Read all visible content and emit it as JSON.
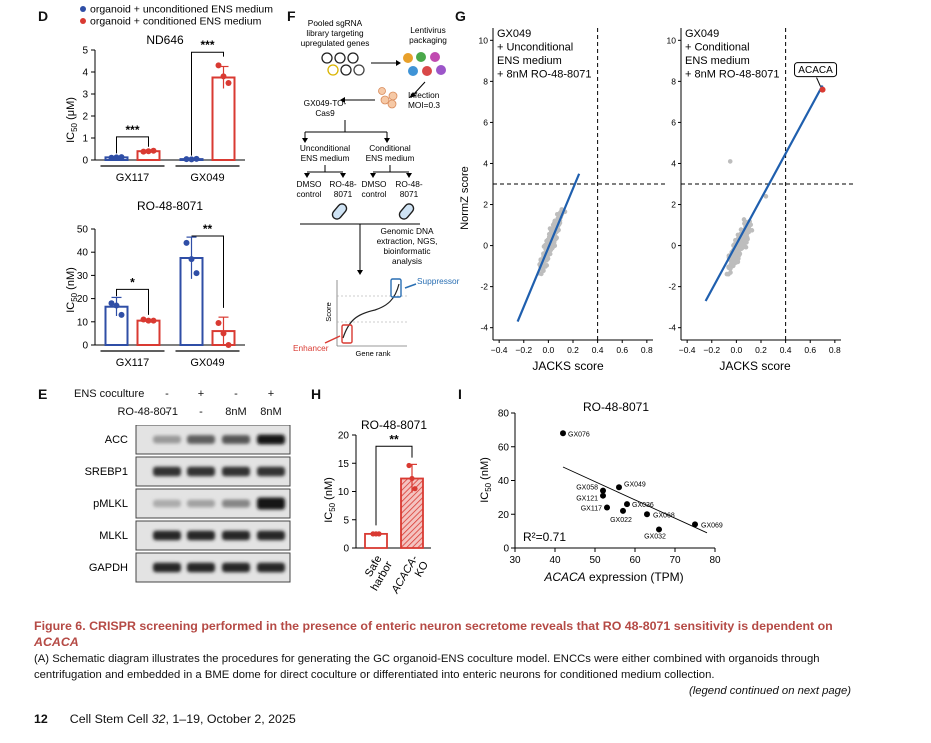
{
  "panel_D": {
    "letter": "D",
    "legend_uncond": "organoid + unconditioned ENS medium",
    "legend_cond": "organoid + conditioned ENS medium",
    "colors": {
      "blue": "#2f4ea6",
      "red": "#d93a32"
    },
    "top": {
      "title": "ND646",
      "ylabel_main": "IC",
      "ylabel_sub": "50",
      "ylabel_unit": " (μM)",
      "yticks": [
        "0",
        "1",
        "2",
        "3",
        "4",
        "5"
      ],
      "groups": [
        "GX117",
        "GX049"
      ],
      "sig": [
        "***",
        "***"
      ]
    },
    "bottom": {
      "title": "RO-48-8071",
      "ylabel_main": "IC",
      "ylabel_sub": "50",
      "ylabel_unit": " (nM)",
      "yticks": [
        "0",
        "10",
        "20",
        "30",
        "40",
        "50"
      ],
      "groups": [
        "GX117",
        "GX049"
      ],
      "sig": [
        "*",
        "**"
      ]
    }
  },
  "panel_F": {
    "letter": "F",
    "pool": "Pooled sgRNA library targeting upregulated genes",
    "lentivirus": "Lentivirus packaging",
    "infection": "Infection MOI=0.3",
    "cell": "GX049-TO-Cas9",
    "uncond": "Unconditional ENS medium",
    "cond": "Conditional ENS medium",
    "dmso": "DMSO control",
    "ro": "RO-48-8071",
    "genomic": "Genomic DNA extraction, NGS, bioinformatic analysis",
    "suppressor": "Suppressor",
    "enhancer": "Enhancer",
    "score": "Score",
    "gene_rank": "Gene rank"
  },
  "panel_G": {
    "letter": "G",
    "left_label": "GX049\n+ Unconditional\nENS medium\n+ 8nM RO-48-8071",
    "right_label": "GX049\n+ Conditional\nENS medium\n+ 8nM RO-48-8071",
    "ylabel": "NormZ score",
    "xlabel": "JACKS score",
    "highlight": "ACACA",
    "yticks": [
      "-4",
      "-2",
      "0",
      "2",
      "4",
      "6",
      "8",
      "10"
    ],
    "xticks": [
      "−0.4",
      "−0.2",
      "0.0",
      "0.2",
      "0.4",
      "0.6",
      "0.8"
    ]
  },
  "panel_E": {
    "letter": "E",
    "row1_label": "ENS coculture",
    "row1_vals": [
      "-",
      "+",
      "-",
      "+"
    ],
    "row2_label": "RO-48-8071",
    "row2_vals": [
      "-",
      "-",
      "8nM",
      "8nM"
    ],
    "blots": [
      "ACC",
      "SREBP1",
      "pMLKL",
      "MLKL",
      "GAPDH"
    ]
  },
  "panel_H": {
    "letter": "H",
    "title": "RO-48-8071",
    "ylabel_main": "IC",
    "ylabel_sub": "50",
    "ylabel_unit": " (nM)",
    "yticks": [
      "0",
      "5",
      "10",
      "15",
      "20"
    ],
    "sig": "**",
    "bars": [
      "Safe harbor",
      "ACACA-KO"
    ]
  },
  "panel_I": {
    "letter": "I",
    "title": "RO-48-8071",
    "ylabel_main": "IC",
    "ylabel_sub": "50",
    "ylabel_unit": " (nM)",
    "xlabel_gene": "ACACA",
    "xlabel_rest": " expression (TPM)",
    "r2": "R²=0.71",
    "yticks": [
      "0",
      "20",
      "40",
      "60",
      "80"
    ],
    "xticks": [
      "30",
      "40",
      "50",
      "60",
      "70",
      "80"
    ]
  },
  "chart_data": [
    {
      "type": "bar",
      "title": "ND646",
      "ylabel": "IC50 (μM)",
      "categories": [
        "GX117",
        "GX049"
      ],
      "ylim": [
        0,
        5
      ],
      "series": [
        {
          "name": "organoid + unconditioned ENS medium",
          "values": [
            0.12,
            0.04
          ],
          "error": [
            0.03,
            0.02
          ],
          "points": [
            [
              0.1,
              0.12,
              0.13
            ],
            [
              0.04,
              0.03,
              0.05
            ]
          ]
        },
        {
          "name": "organoid + conditioned ENS medium",
          "values": [
            0.4,
            3.75
          ],
          "error": [
            0.05,
            0.5
          ],
          "points": [
            [
              0.38,
              0.4,
              0.42
            ],
            [
              4.3,
              3.8,
              3.5
            ]
          ]
        }
      ]
    },
    {
      "type": "bar",
      "title": "RO-48-8071",
      "ylabel": "IC50 (nM)",
      "categories": [
        "GX117",
        "GX049"
      ],
      "ylim": [
        0,
        50
      ],
      "series": [
        {
          "name": "organoid + unconditioned ENS medium",
          "values": [
            16.5,
            37.5
          ],
          "error": [
            4,
            9
          ],
          "points": [
            [
              18,
              17,
              13
            ],
            [
              44,
              37,
              31
            ]
          ]
        },
        {
          "name": "organoid + conditioned ENS medium",
          "values": [
            10.5,
            6
          ],
          "error": [
            0.5,
            6
          ],
          "points": [
            [
              11,
              10.5,
              10.5
            ],
            [
              9.5,
              5,
              0
            ]
          ]
        }
      ]
    },
    {
      "type": "scatter",
      "title": "GX049 + Unconditional ENS medium + 8nM RO-48-8071",
      "xlabel": "JACKS score",
      "ylabel": "NormZ score",
      "xlim": [
        -0.45,
        0.85
      ],
      "ylim": [
        -4.6,
        10.6
      ],
      "fit": [
        [
          -0.25,
          -3.7
        ],
        [
          0.25,
          3.5
        ]
      ],
      "thresholds": {
        "x": 0.4,
        "y": 3
      }
    },
    {
      "type": "scatter",
      "title": "GX049 + Conditional ENS medium + 8nM RO-48-8071",
      "xlabel": "JACKS score",
      "ylabel": "NormZ score",
      "xlim": [
        -0.45,
        0.85
      ],
      "ylim": [
        -4.6,
        10.6
      ],
      "fit": [
        [
          -0.25,
          -2.7
        ],
        [
          0.7,
          7.8
        ]
      ],
      "thresholds": {
        "x": 0.4,
        "y": 3
      },
      "highlight": {
        "label": "ACACA",
        "x": 0.7,
        "y": 7.6
      }
    },
    {
      "type": "bar",
      "title": "RO-48-8071",
      "ylabel": "IC50 (nM)",
      "categories": [
        "Safe harbor",
        "ACACA-KO"
      ],
      "ylim": [
        0,
        20
      ],
      "values": [
        2.5,
        12.3
      ],
      "error": [
        0.1,
        2.5
      ],
      "points": [
        [
          2.5,
          2.5,
          2.5
        ],
        [
          14.6,
          12.3,
          10.5
        ]
      ]
    },
    {
      "type": "scatter",
      "title": "RO-48-8071",
      "xlabel": "ACACA expression (TPM)",
      "ylabel": "IC50 (nM)",
      "xlim": [
        30,
        80
      ],
      "ylim": [
        0,
        80
      ],
      "points": [
        {
          "name": "GX076",
          "x": 42,
          "y": 68
        },
        {
          "name": "GX049",
          "x": 56,
          "y": 36
        },
        {
          "name": "GX058",
          "x": 52,
          "y": 34
        },
        {
          "name": "GX121",
          "x": 52,
          "y": 31
        },
        {
          "name": "GX036",
          "x": 58,
          "y": 26
        },
        {
          "name": "GX117",
          "x": 53,
          "y": 24
        },
        {
          "name": "GX022",
          "x": 57,
          "y": 22
        },
        {
          "name": "GX068",
          "x": 63,
          "y": 20
        },
        {
          "name": "GX069",
          "x": 75,
          "y": 14
        },
        {
          "name": "GX032",
          "x": 66,
          "y": 11
        }
      ],
      "fit": [
        [
          42,
          48
        ],
        [
          78,
          9
        ]
      ],
      "annotation": "R²=0.71"
    }
  ],
  "caption": {
    "title": "Figure 6. CRISPR screening performed in the presence of enteric neuron secretome reveals that RO 48-8071 sensitivity is dependent on ",
    "title_gene": "ACACA",
    "body": "(A) Schematic diagram illustrates the procedures for generating the GC organoid-ENS coculture model. ENCCs were either combined with organoids through centrifugation and embedded in a BME dome for direct coculture or differentiated into enteric neurons for conditioned medium collection.",
    "continued": "(legend continued on next page)"
  },
  "footer": {
    "page": "12",
    "journal": "Cell Stem Cell ",
    "volume": "32",
    "rest": ", 1–19, October 2, 2025"
  }
}
